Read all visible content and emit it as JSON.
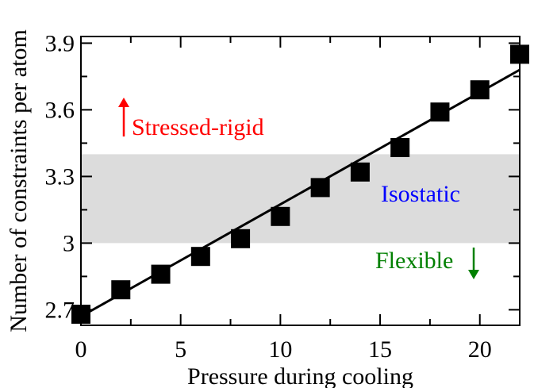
{
  "chart_data": {
    "type": "scatter",
    "title": "",
    "xlabel": "Pressure during cooling",
    "ylabel": "Number of constraints per atom",
    "xlim": [
      0,
      22
    ],
    "ylim": [
      2.63,
      3.93
    ],
    "xticks": [
      0,
      5,
      10,
      15,
      20
    ],
    "xtick_labels": [
      "0",
      "5",
      "10",
      "15",
      "20"
    ],
    "yticks": [
      2.7,
      3.0,
      3.3,
      3.6,
      3.9
    ],
    "ytick_labels": [
      "2.7",
      "3",
      "3.3",
      "3.6",
      "3.9"
    ],
    "grid": false,
    "legend": "none",
    "series": [
      {
        "marker": "square",
        "color": "#000000",
        "x": [
          0,
          2,
          4,
          6,
          8,
          10,
          12,
          14,
          16,
          18,
          20,
          22
        ],
        "y": [
          2.68,
          2.79,
          2.86,
          2.94,
          3.02,
          3.12,
          3.25,
          3.32,
          3.43,
          3.59,
          3.69,
          3.85
        ]
      }
    ],
    "fit_line": {
      "color": "#000000",
      "x": [
        0,
        22
      ],
      "y": [
        2.67,
        3.78
      ]
    },
    "band": {
      "y0": 3.0,
      "y1": 3.4,
      "color": "#dcdcdc"
    },
    "annotations": [
      {
        "text": "Stressed-rigid",
        "color": "#ff0000",
        "arrow": "up"
      },
      {
        "text": "Isostatic",
        "color": "#0000ff",
        "arrow": "none"
      },
      {
        "text": "Flexible",
        "color": "#008000",
        "arrow": "down"
      }
    ]
  }
}
